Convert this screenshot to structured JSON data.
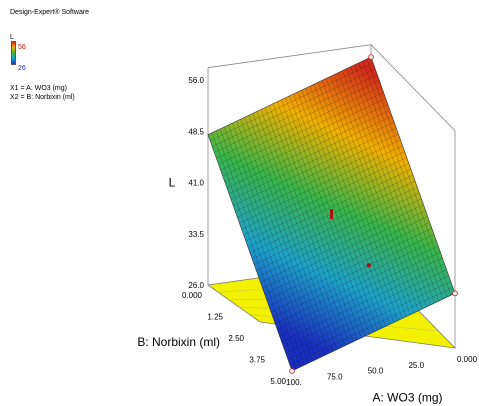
{
  "header": {
    "title": "Design-Expert® Software"
  },
  "legend": {
    "variable": "L",
    "max_label": "56",
    "min_label": "26"
  },
  "factors": {
    "x1": "X1 = A: WO3 (mg)",
    "x2": "X2 = B: Norbixin (ml)"
  },
  "chart_data": {
    "type": "surface",
    "response": "L",
    "factor_a": {
      "name": "A: WO3 (mg)",
      "range": [
        0,
        100
      ],
      "ticks": [
        "0.000",
        "25.0",
        "50.0",
        "75.0",
        "100."
      ]
    },
    "factor_b": {
      "name": "B: Norbixin (ml)",
      "range": [
        0,
        5
      ],
      "ticks": [
        "0.000",
        "1.25",
        "2.50",
        "3.75",
        "5.00"
      ]
    },
    "z": {
      "label": "L",
      "range": [
        26,
        56
      ],
      "ticks": [
        "26.0",
        "33.5",
        "41.0",
        "48.5",
        "56.0"
      ]
    },
    "surface_corners": [
      {
        "A": 0,
        "B": 0,
        "L": 56
      },
      {
        "A": 0,
        "B": 5,
        "L": 34
      },
      {
        "A": 100,
        "B": 5,
        "L": 26
      },
      {
        "A": 100,
        "B": 0,
        "L": 48
      }
    ],
    "color_scale": [
      "#1a2fc0",
      "#1fa0c8",
      "#3bb54a",
      "#f0b000",
      "#d22a1c"
    ]
  }
}
